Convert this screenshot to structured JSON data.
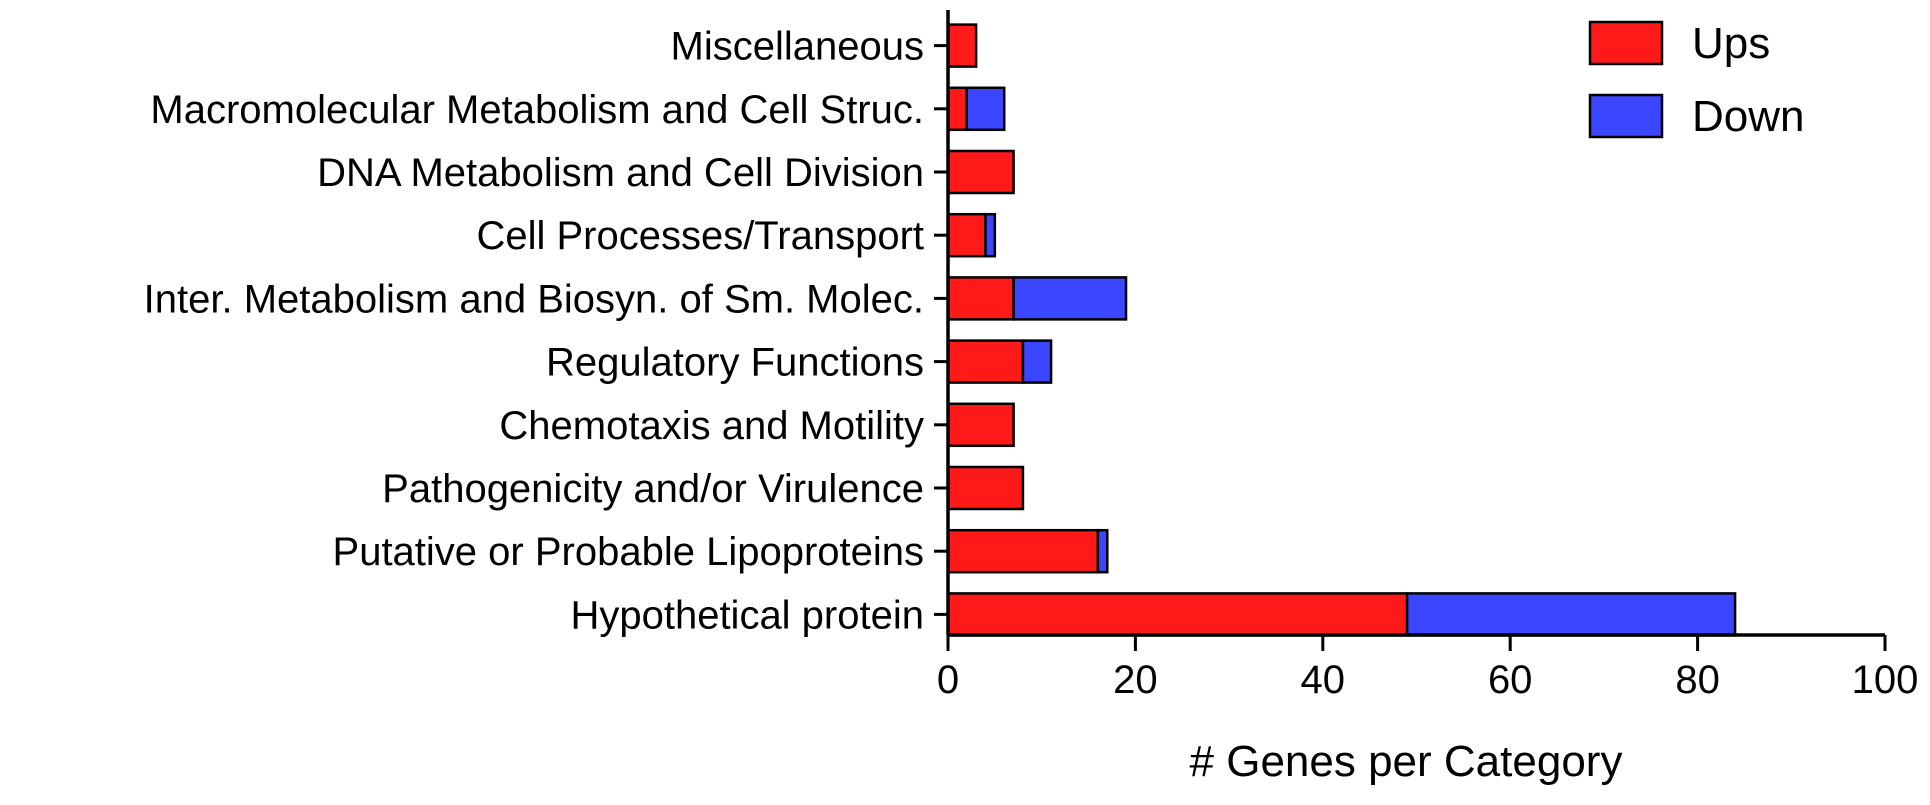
{
  "chart_data": {
    "type": "bar",
    "orientation": "horizontal",
    "stacked": true,
    "categories": [
      "Miscellaneous",
      "Macromolecular Metabolism and Cell Struc.",
      "DNA Metabolism and Cell Division",
      "Cell Processes/Transport",
      "Inter. Metabolism and Biosyn. of Sm. Molec.",
      "Regulatory Functions",
      "Chemotaxis and Motility",
      "Pathogenicity and/or Virulence",
      "Putative or Probable Lipoproteins",
      "Hypothetical protein"
    ],
    "series": [
      {
        "name": "Ups",
        "color": "#ff1a1a",
        "values": [
          3,
          2,
          7,
          4,
          7,
          8,
          7,
          8,
          16,
          49
        ]
      },
      {
        "name": "Down",
        "color": "#3a46ff",
        "values": [
          0,
          4,
          0,
          1,
          12,
          3,
          0,
          0,
          1,
          35
        ]
      }
    ],
    "title": "",
    "xlabel": "# Genes per Category",
    "ylabel": "",
    "xlim": [
      0,
      100
    ],
    "xticks": [
      0,
      20,
      40,
      60,
      80,
      100
    ],
    "grid": false,
    "legend_position": "top-right"
  }
}
